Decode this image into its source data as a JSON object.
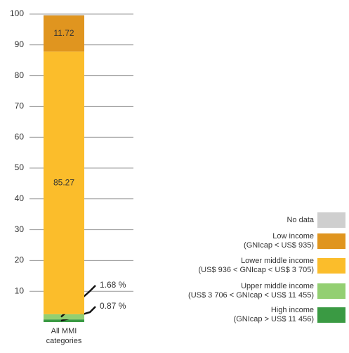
{
  "chart_data": {
    "type": "stacked_bar",
    "categories": [
      "All MMI\ncategories"
    ],
    "series": [
      {
        "name": "High income\n(GNIcap > US$ 11 456)",
        "color": "#3a9a43",
        "values": [
          0.87
        ],
        "value_labels": [
          "0.87 %"
        ]
      },
      {
        "name": "Upper middle income\n(US$ 3 706 < GNIcap < US$ 11 455)",
        "color": "#93cf72",
        "values": [
          1.68
        ],
        "value_labels": [
          "1.68 %"
        ]
      },
      {
        "name": "Lower middle income\n(US$ 936 < GNIcap < US$ 3 705)",
        "color": "#fbbd2b",
        "values": [
          85.27
        ],
        "value_labels": [
          "85.27"
        ]
      },
      {
        "name": "Low income\n(GNIcap < US$ 935)",
        "color": "#e0951f",
        "values": [
          11.72
        ],
        "value_labels": [
          "11.72"
        ]
      },
      {
        "name": "No data",
        "color": "#cfcfcf",
        "values": [
          0.46
        ]
      }
    ],
    "ylim": [
      0,
      100
    ],
    "yticks": [
      10,
      20,
      30,
      40,
      50,
      60,
      70,
      80,
      90,
      100
    ],
    "grid": true
  }
}
